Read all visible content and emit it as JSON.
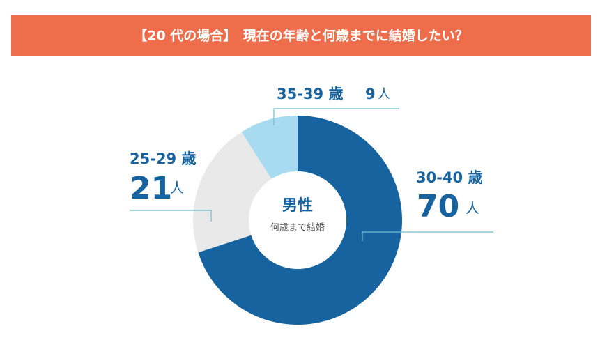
{
  "chart_data": {
    "type": "donut",
    "title": "【20 代の場合】　現在の年齢と何歳までに結婚したい？",
    "center_title": "男性",
    "center_subtitle": "何歳まで結婚",
    "categories": [
      "30-40 歳",
      "25-29 歳",
      "35-39 歳"
    ],
    "values": [
      70,
      21,
      9
    ],
    "colors": [
      "#1663a0",
      "#e9e9e9",
      "#a9dbf0"
    ],
    "unit": "人"
  }
}
